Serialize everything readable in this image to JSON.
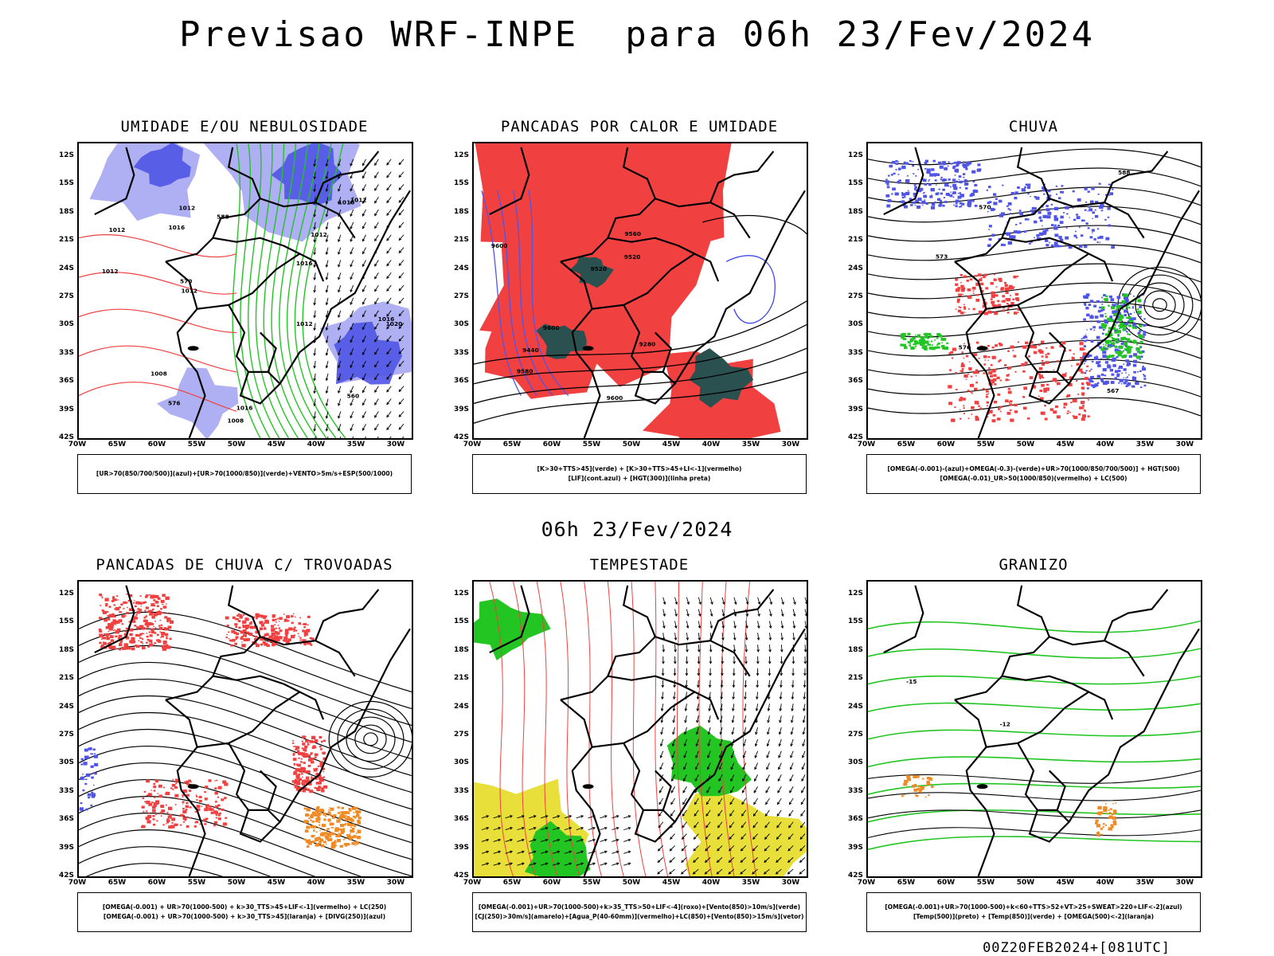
{
  "main_title": "Previsao WRF-INPE  para 06h 23/Fev/2024",
  "mid_title": "06h 23/Fev/2024",
  "footer": "00Z20FEB2024+[081UTC]",
  "colors": {
    "blue": "#5055e6",
    "lightblue": "#a6a6f2",
    "green": "#22c522",
    "red": "#f04040",
    "darkgreen": "#2a5050",
    "yellow": "#e8dd30",
    "orange": "#f08a24"
  },
  "lat_labels": [
    "12S",
    "15S",
    "18S",
    "21S",
    "24S",
    "27S",
    "30S",
    "33S",
    "36S",
    "39S",
    "42S"
  ],
  "lon_labels": [
    "70W",
    "65W",
    "60W",
    "55W",
    "50W",
    "45W",
    "40W",
    "35W",
    "30W"
  ],
  "panels": [
    {
      "title": "UMIDADE E/OU NEBULOSIDADE",
      "legend_line1": "[UR>70(850/700/500)](azul)+[UR>70(1000/850)](verde)+VENTO>5m/s+ESP(500/1000)",
      "legend_line2": ""
    },
    {
      "title": "PANCADAS POR CALOR E UMIDADE",
      "legend_line1": "[K>30+TTS>45](verde) + [K>30+TTS>45+LI<-1](vermelho)",
      "legend_line2": "[LIF](cont.azul) + [HGT(300)](linha preta)"
    },
    {
      "title": "CHUVA",
      "legend_line1": "[OMEGA(-0.001)-(azul)+OMEGA(-0.3)-(verde)+UR>70(1000/850/700/500)] + HGT(500)",
      "legend_line2": "[OMEGA(-0.01)_UR>50(1000/850)(vermelho) + LC(500)"
    },
    {
      "title": "PANCADAS DE CHUVA C/ TROVOADAS",
      "legend_line1": "[OMEGA(-0.001) + UR>70(1000-500) + k>30_TTS>45+LIF<-1](vermelho) + LC(250)",
      "legend_line2": "[OMEGA(-0.001) + UR>70(1000-500) + k>30_TTS>45](laranja) + [DIVG(250)](azul)"
    },
    {
      "title": "TEMPESTADE",
      "legend_line1": "[OMEGA(-0.001)+UR>70(1000-500)+k>35_TTS>50+LIF<-4](roxo)+[Vento(850)>10m/s](verde)",
      "legend_line2": "[CJ(250)>30m/s](amarelo)+[Agua_P(40-60mm)](vermelho)+LC(850)+[Vento(850)>15m/s](vetor)"
    },
    {
      "title": "GRANIZO",
      "legend_line1": "[OMEGA(-0.001)+UR>70(1000-500)+k<60+TTS>52+VT>25+SWEAT>220+LIF<-2](azul)",
      "legend_line2": "[Temp(500)](preto) + [Temp(850)](verde) + [OMEGA(500)<-2](laranja)"
    }
  ],
  "contour_labels": {
    "p1": [
      "1012",
      "1016",
      "1016",
      "1016",
      "1016",
      "1008",
      "1012",
      "1012",
      "1012",
      "1020",
      "1016",
      "1012",
      "1012",
      "1008",
      "1012",
      "576",
      "570",
      "588",
      "560"
    ],
    "p2": [
      "9600",
      "9520",
      "9600",
      "9600",
      "9440",
      "9520",
      "9560",
      "9580",
      "9280"
    ],
    "p3": [
      "588",
      "576",
      "570",
      "567",
      "573"
    ],
    "p6": [
      "-12",
      "-15"
    ]
  }
}
